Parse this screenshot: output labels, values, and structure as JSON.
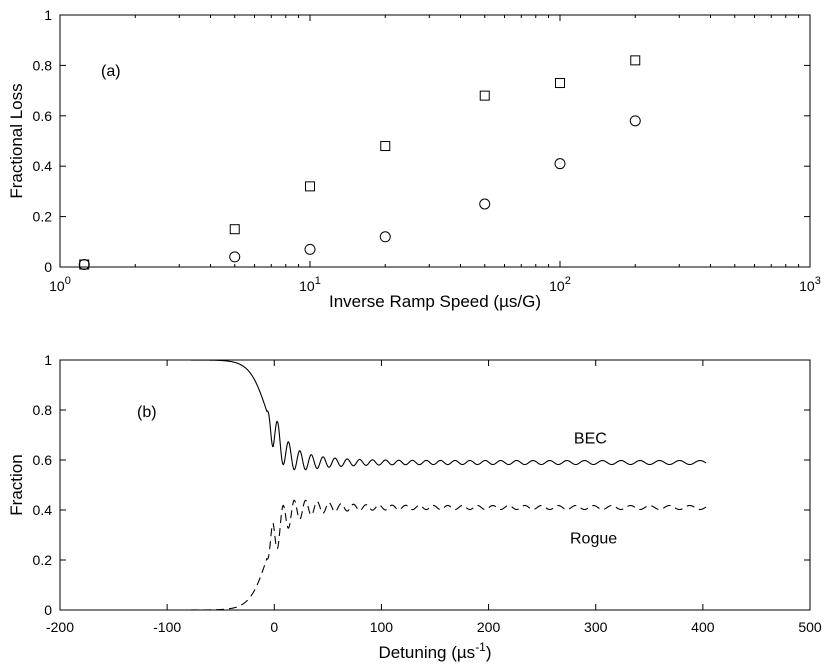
{
  "chart_data": [
    {
      "type": "scatter",
      "panel_label": "(a)",
      "xlabel": "Inverse Ramp Speed (µs/G)",
      "ylabel": "Fractional Loss",
      "xscale": "log",
      "xlim": [
        1,
        1000
      ],
      "ylim": [
        0,
        1
      ],
      "x_ticks": [
        {
          "base": "10",
          "exp": "0",
          "value": 1
        },
        {
          "base": "10",
          "exp": "1",
          "value": 10
        },
        {
          "base": "10",
          "exp": "2",
          "value": 100
        },
        {
          "base": "10",
          "exp": "3",
          "value": 1000
        }
      ],
      "y_ticks": [
        "0",
        "0.2",
        "0.4",
        "0.6",
        "0.8",
        "1"
      ],
      "grid": false,
      "series": [
        {
          "marker": "square",
          "x": [
            1.25,
            5,
            10,
            20,
            50,
            100,
            200
          ],
          "y": [
            0.01,
            0.15,
            0.32,
            0.48,
            0.68,
            0.73,
            0.82
          ]
        },
        {
          "marker": "circle",
          "x": [
            1.25,
            5,
            10,
            20,
            50,
            100,
            200
          ],
          "y": [
            0.01,
            0.04,
            0.07,
            0.12,
            0.25,
            0.41,
            0.58
          ]
        }
      ]
    },
    {
      "type": "line",
      "panel_label": "(b)",
      "xlabel": "Detuning (µs",
      "xlabel_sup": "-1",
      "xlabel_close": ")",
      "ylabel": "Fraction",
      "xlim": [
        -200,
        500
      ],
      "ylim": [
        0,
        1
      ],
      "x_ticks": [
        "-200",
        "-100",
        "0",
        "100",
        "200",
        "300",
        "400",
        "500"
      ],
      "y_ticks": [
        "0",
        "0.2",
        "0.4",
        "0.6",
        "0.8",
        "1"
      ],
      "grid": false,
      "series": [
        {
          "name": "BEC",
          "style": "solid",
          "model": {
            "x_start": -200,
            "x_end": 403,
            "x0": -7,
            "width": 8,
            "initial": 1.0,
            "final": 0.59,
            "osc_amp": 0.1,
            "osc_decay": 28,
            "osc_period_start": 10,
            "osc_period_end": 14,
            "residual_amp": 0.008
          }
        },
        {
          "name": "Rogue",
          "style": "dashed",
          "model": {
            "x_start": -200,
            "x_end": 403,
            "x0": -7,
            "width": 8,
            "initial": 0.0,
            "final": 0.41,
            "osc_amp": -0.1,
            "osc_decay": 28,
            "osc_period_start": 10,
            "osc_period_end": 14,
            "residual_amp": -0.008
          }
        }
      ],
      "annotations": [
        {
          "text": "BEC",
          "x": 295,
          "y": 0.69
        },
        {
          "text": "Rogue",
          "x": 298,
          "y": 0.29
        }
      ]
    }
  ]
}
